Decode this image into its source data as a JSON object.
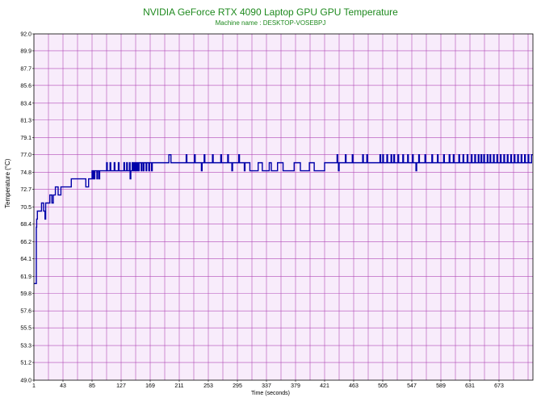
{
  "chart_data": {
    "type": "line",
    "title": "NVIDIA GeForce RTX 4090 Laptop GPU GPU Temperature",
    "subtitle": "Machine name : DESKTOP-VOSEBPJ",
    "xlabel": "Time (seconds)",
    "ylabel": "Temperature (°C)",
    "xlim": [
      1,
      722
    ],
    "ylim": [
      49.0,
      92.0
    ],
    "x_ticks": [
      "1",
      "43",
      "85",
      "127",
      "169",
      "211",
      "253",
      "295",
      "337",
      "379",
      "421",
      "463",
      "505",
      "547",
      "589",
      "631",
      "673"
    ],
    "y_ticks": [
      "92.0",
      "89.9",
      "87.7",
      "85.6",
      "83.4",
      "81.3",
      "79.1",
      "77.0",
      "74.8",
      "72.7",
      "70.5",
      "68.4",
      "66.2",
      "64.1",
      "61.9",
      "59.8",
      "57.6",
      "55.5",
      "53.3",
      "51.2",
      "49.0"
    ],
    "grid": true,
    "background": "#f8ecfb",
    "grid_color": "#b24bb8",
    "line_color": "#0000aa",
    "series": [
      {
        "values": [
          [
            1,
            61
          ],
          [
            2,
            61
          ],
          [
            4,
            61
          ],
          [
            4.5,
            68
          ],
          [
            5,
            69
          ],
          [
            6,
            70
          ],
          [
            8,
            70
          ],
          [
            10,
            70
          ],
          [
            12,
            71
          ],
          [
            14,
            71
          ],
          [
            15,
            70
          ],
          [
            16,
            70
          ],
          [
            17,
            69
          ],
          [
            18,
            71
          ],
          [
            20,
            71
          ],
          [
            22,
            71
          ],
          [
            24,
            72
          ],
          [
            26,
            72
          ],
          [
            27,
            71
          ],
          [
            28,
            71
          ],
          [
            29,
            72
          ],
          [
            31,
            72
          ],
          [
            32,
            73
          ],
          [
            34,
            73
          ],
          [
            36,
            72
          ],
          [
            38,
            72
          ],
          [
            40,
            73
          ],
          [
            50,
            73
          ],
          [
            55,
            74
          ],
          [
            75,
            74
          ],
          [
            76,
            73
          ],
          [
            79,
            73
          ],
          [
            80,
            74
          ],
          [
            84,
            74
          ],
          [
            85,
            75
          ],
          [
            86,
            74
          ],
          [
            87,
            75
          ],
          [
            88,
            74
          ],
          [
            89,
            75
          ],
          [
            91,
            75
          ],
          [
            92,
            74
          ],
          [
            93,
            75
          ],
          [
            94,
            75
          ],
          [
            95,
            74
          ],
          [
            96,
            75
          ],
          [
            105,
            75
          ],
          [
            106,
            76
          ],
          [
            107,
            75
          ],
          [
            110,
            75
          ],
          [
            111,
            76
          ],
          [
            112,
            75
          ],
          [
            116,
            75
          ],
          [
            117,
            76
          ],
          [
            118,
            75
          ],
          [
            122,
            75
          ],
          [
            123,
            76
          ],
          [
            124,
            75
          ],
          [
            130,
            75
          ],
          [
            131,
            76
          ],
          [
            132,
            75
          ],
          [
            134,
            75
          ],
          [
            135,
            76
          ],
          [
            136,
            75
          ],
          [
            138,
            75
          ],
          [
            139,
            76
          ],
          [
            140,
            74
          ],
          [
            141,
            75
          ],
          [
            142,
            75
          ],
          [
            143,
            76
          ],
          [
            144,
            75
          ],
          [
            145,
            76
          ],
          [
            146,
            75
          ],
          [
            147,
            76
          ],
          [
            148,
            75
          ],
          [
            149,
            76
          ],
          [
            150,
            75
          ],
          [
            151,
            76
          ],
          [
            152,
            75
          ],
          [
            153,
            76
          ],
          [
            155,
            76
          ],
          [
            156,
            75
          ],
          [
            157,
            76
          ],
          [
            158,
            76
          ],
          [
            159,
            75
          ],
          [
            160,
            76
          ],
          [
            162,
            76
          ],
          [
            163,
            75
          ],
          [
            164,
            76
          ],
          [
            166,
            76
          ],
          [
            167,
            75
          ],
          [
            168,
            76
          ],
          [
            170,
            76
          ],
          [
            171,
            75
          ],
          [
            172,
            76
          ],
          [
            195,
            76
          ],
          [
            196,
            77
          ],
          [
            198,
            77
          ],
          [
            199,
            76
          ],
          [
            220,
            76
          ],
          [
            221,
            77
          ],
          [
            222,
            76
          ],
          [
            232,
            76
          ],
          [
            233,
            77
          ],
          [
            234,
            76
          ],
          [
            242,
            76
          ],
          [
            243,
            75
          ],
          [
            244,
            76
          ],
          [
            246,
            76
          ],
          [
            247,
            77
          ],
          [
            248,
            76
          ],
          [
            258,
            76
          ],
          [
            259,
            77
          ],
          [
            260,
            76
          ],
          [
            270,
            76
          ],
          [
            271,
            77
          ],
          [
            272,
            76
          ],
          [
            280,
            76
          ],
          [
            281,
            77
          ],
          [
            282,
            76
          ],
          [
            286,
            76
          ],
          [
            287,
            75
          ],
          [
            288,
            76
          ],
          [
            296,
            76
          ],
          [
            297,
            77
          ],
          [
            298,
            76
          ],
          [
            304,
            76
          ],
          [
            305,
            75
          ],
          [
            306,
            76
          ],
          [
            312,
            76
          ],
          [
            313,
            75
          ],
          [
            324,
            75
          ],
          [
            325,
            76
          ],
          [
            330,
            76
          ],
          [
            331,
            75
          ],
          [
            340,
            75
          ],
          [
            341,
            76
          ],
          [
            343,
            76
          ],
          [
            344,
            75
          ],
          [
            352,
            75
          ],
          [
            353,
            76
          ],
          [
            360,
            76
          ],
          [
            361,
            75
          ],
          [
            376,
            75
          ],
          [
            377,
            76
          ],
          [
            385,
            76
          ],
          [
            386,
            75
          ],
          [
            398,
            75
          ],
          [
            399,
            76
          ],
          [
            405,
            76
          ],
          [
            406,
            75
          ],
          [
            420,
            75
          ],
          [
            421,
            76
          ],
          [
            438,
            76
          ],
          [
            439,
            77
          ],
          [
            440,
            76
          ],
          [
            441,
            75
          ],
          [
            442,
            76
          ],
          [
            450,
            76
          ],
          [
            451,
            77
          ],
          [
            452,
            76
          ],
          [
            460,
            76
          ],
          [
            461,
            77
          ],
          [
            462,
            76
          ],
          [
            475,
            76
          ],
          [
            476,
            77
          ],
          [
            477,
            76
          ],
          [
            480,
            76
          ],
          [
            481,
            76
          ],
          [
            482,
            77
          ],
          [
            483,
            76
          ],
          [
            500,
            76
          ],
          [
            501,
            77
          ],
          [
            502,
            76
          ],
          [
            504,
            76
          ],
          [
            505,
            77
          ],
          [
            506,
            76
          ],
          [
            510,
            76
          ],
          [
            511,
            77
          ],
          [
            512,
            76
          ],
          [
            516,
            76
          ],
          [
            517,
            77
          ],
          [
            518,
            76
          ],
          [
            520,
            76
          ],
          [
            521,
            77
          ],
          [
            522,
            76
          ],
          [
            526,
            76
          ],
          [
            527,
            77
          ],
          [
            528,
            76
          ],
          [
            533,
            76
          ],
          [
            534,
            77
          ],
          [
            535,
            76
          ],
          [
            540,
            76
          ],
          [
            541,
            77
          ],
          [
            542,
            76
          ],
          [
            547,
            76
          ],
          [
            548,
            77
          ],
          [
            549,
            76
          ],
          [
            552,
            76
          ],
          [
            553,
            75
          ],
          [
            554,
            76
          ],
          [
            556,
            76
          ],
          [
            557,
            77
          ],
          [
            558,
            76
          ],
          [
            565,
            76
          ],
          [
            566,
            77
          ],
          [
            567,
            76
          ],
          [
            575,
            76
          ],
          [
            576,
            77
          ],
          [
            577,
            76
          ],
          [
            583,
            76
          ],
          [
            584,
            77
          ],
          [
            585,
            76
          ],
          [
            592,
            76
          ],
          [
            593,
            77
          ],
          [
            594,
            76
          ],
          [
            600,
            76
          ],
          [
            601,
            77
          ],
          [
            602,
            76
          ],
          [
            606,
            76
          ],
          [
            607,
            77
          ],
          [
            608,
            76
          ],
          [
            614,
            76
          ],
          [
            615,
            77
          ],
          [
            616,
            76
          ],
          [
            620,
            76
          ],
          [
            621,
            77
          ],
          [
            622,
            76
          ],
          [
            626,
            76
          ],
          [
            627,
            77
          ],
          [
            628,
            76
          ],
          [
            632,
            76
          ],
          [
            633,
            77
          ],
          [
            634,
            76
          ],
          [
            637,
            76
          ],
          [
            638,
            77
          ],
          [
            639,
            76
          ],
          [
            642,
            76
          ],
          [
            643,
            77
          ],
          [
            644,
            76
          ],
          [
            646,
            76
          ],
          [
            647,
            77
          ],
          [
            648,
            76
          ],
          [
            650,
            76
          ],
          [
            651,
            77
          ],
          [
            652,
            76
          ],
          [
            655,
            76
          ],
          [
            656,
            77
          ],
          [
            657,
            76
          ],
          [
            659,
            76
          ],
          [
            660,
            77
          ],
          [
            661,
            76
          ],
          [
            664,
            76
          ],
          [
            665,
            77
          ],
          [
            666,
            76
          ],
          [
            669,
            76
          ],
          [
            670,
            77
          ],
          [
            671,
            76
          ],
          [
            674,
            76
          ],
          [
            675,
            77
          ],
          [
            676,
            76
          ],
          [
            679,
            76
          ],
          [
            680,
            77
          ],
          [
            681,
            76
          ],
          [
            684,
            76
          ],
          [
            685,
            77
          ],
          [
            686,
            76
          ],
          [
            689,
            76
          ],
          [
            690,
            77
          ],
          [
            691,
            76
          ],
          [
            694,
            76
          ],
          [
            695,
            77
          ],
          [
            696,
            76
          ],
          [
            699,
            76
          ],
          [
            700,
            77
          ],
          [
            701,
            76
          ],
          [
            704,
            76
          ],
          [
            705,
            77
          ],
          [
            706,
            76
          ],
          [
            709,
            76
          ],
          [
            710,
            77
          ],
          [
            711,
            76
          ],
          [
            714,
            76
          ],
          [
            715,
            77
          ],
          [
            716,
            76
          ],
          [
            719,
            76
          ],
          [
            720,
            77
          ],
          [
            722,
            77
          ]
        ]
      }
    ]
  }
}
